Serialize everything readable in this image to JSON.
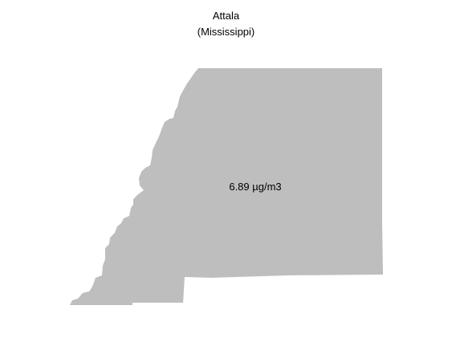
{
  "map": {
    "title": "Attala",
    "subtitle": "(Mississippi)",
    "value_label": "6.89 µg/m3",
    "fill_color": "#bebebe",
    "background_color": "#ffffff"
  }
}
